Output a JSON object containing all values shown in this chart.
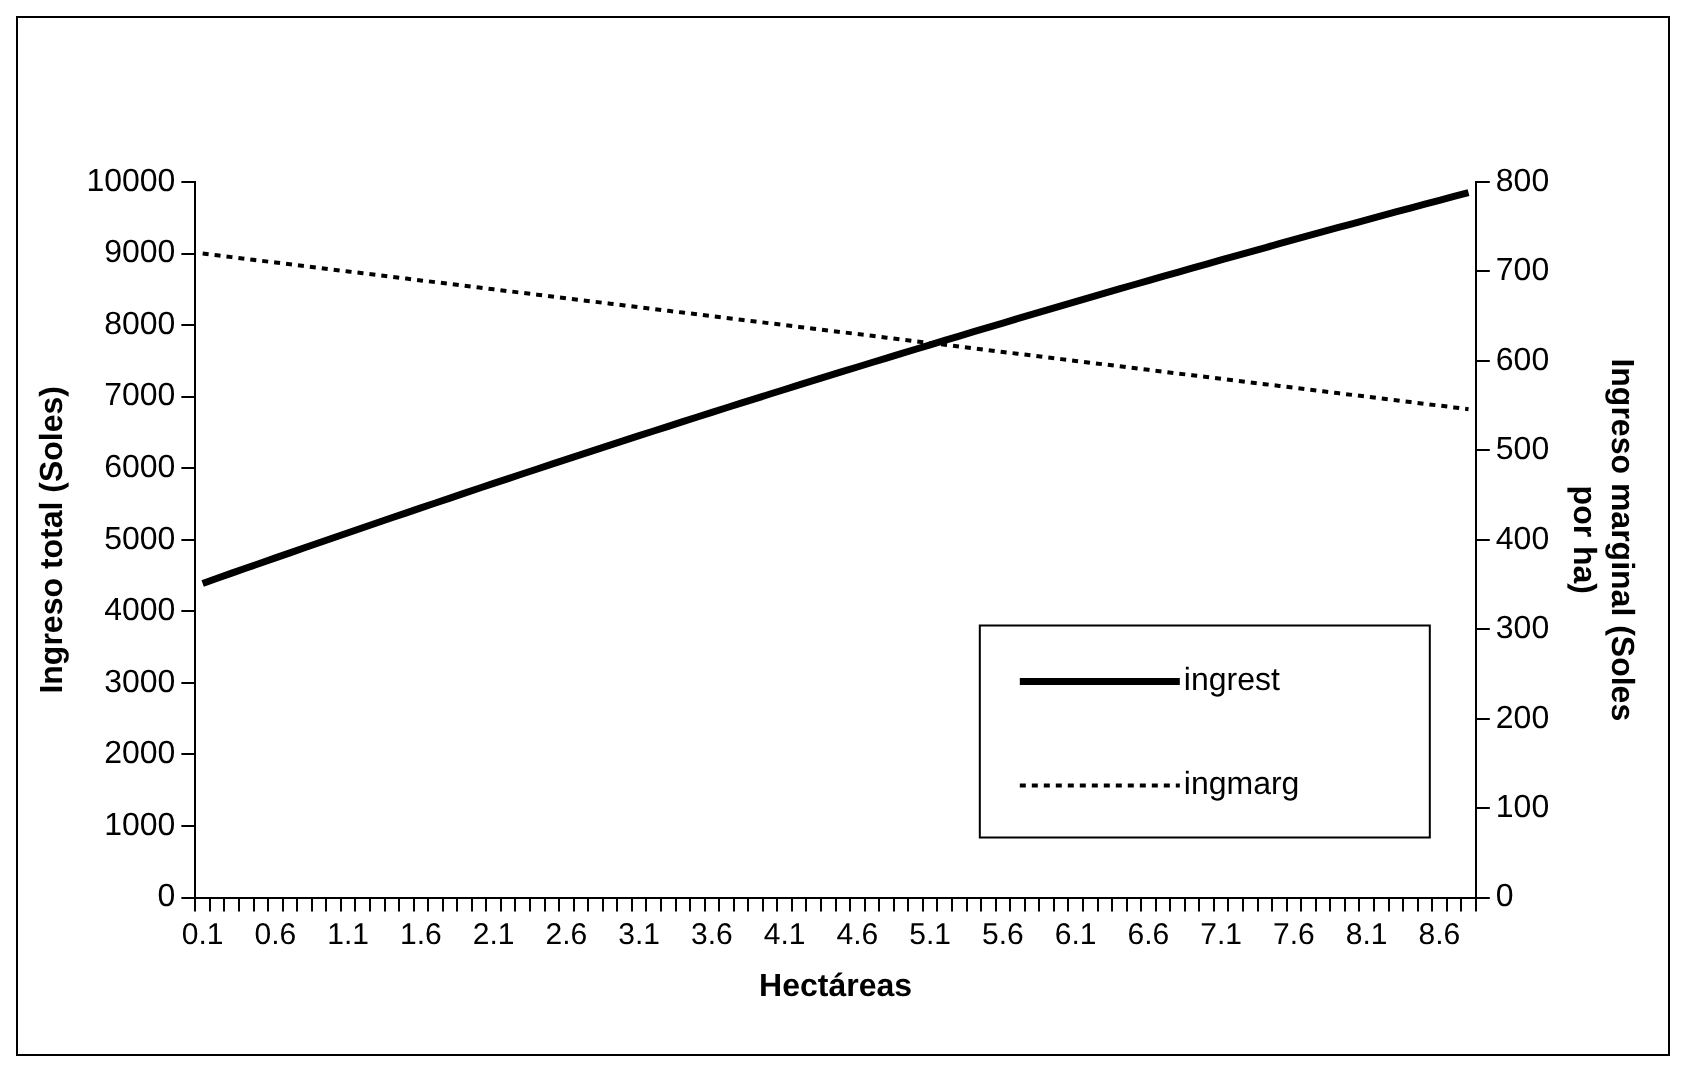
{
  "chart_data": {
    "type": "line",
    "xlabel": "Hectáreas",
    "ylabel": "Ingreso total (Soles)",
    "y2label": "Ingreso marginal (Soles por ha)",
    "categories": [
      "0.1",
      null,
      null,
      null,
      null,
      "0.6",
      null,
      null,
      null,
      null,
      "1.1",
      null,
      null,
      null,
      null,
      "1.6",
      null,
      null,
      null,
      null,
      "2.1",
      null,
      null,
      null,
      null,
      "2.6",
      null,
      null,
      null,
      null,
      "3.1",
      null,
      null,
      null,
      null,
      "3.6",
      null,
      null,
      null,
      null,
      "4.1",
      null,
      null,
      null,
      null,
      "4.6",
      null,
      null,
      null,
      null,
      "5.1",
      null,
      null,
      null,
      null,
      "5.6",
      null,
      null,
      null,
      null,
      "6.1",
      null,
      null,
      null,
      null,
      "6.6",
      null,
      null,
      null,
      null,
      "7.1",
      null,
      null,
      null,
      null,
      "7.6",
      null,
      null,
      null,
      null,
      "8.1",
      null,
      null,
      null,
      null,
      "8.6",
      null,
      null
    ],
    "series": [
      {
        "name": "ingrest",
        "color": "#000000",
        "line_style": "solid",
        "values": [
          4390,
          4462,
          4534,
          4605,
          4676,
          4747,
          4818,
          4889,
          4959,
          5029,
          5099,
          5169,
          5239,
          5308,
          5377,
          5446,
          5515,
          5583,
          5652,
          5720,
          5788,
          5855,
          5923,
          5990,
          6057,
          6124,
          6190,
          6257,
          6323,
          6389,
          6455,
          6520,
          6586,
          6651,
          6716,
          6780,
          6845,
          6909,
          6973,
          7037,
          7100,
          7164,
          7227,
          7290,
          7353,
          7415,
          7478,
          7540,
          7602,
          7663,
          7725,
          7786,
          7847,
          7908,
          7969,
          8029,
          8090,
          8150,
          8209,
          8269,
          8328,
          8388,
          8446,
          8505,
          8564,
          8622,
          8680,
          8738,
          8796,
          8853,
          8911,
          8968,
          9025,
          9081,
          9138,
          9194,
          9250,
          9305,
          9361,
          9416,
          9472,
          9526,
          9581,
          9636,
          9690,
          9744,
          9798,
          9852
        ]
      },
      {
        "name": "ingmarg",
        "color": "#000000",
        "line_style": "dotted",
        "axis": "y2",
        "values": [
          720,
          718,
          716,
          714,
          712,
          710,
          708,
          706,
          704,
          702,
          700,
          698,
          696,
          694,
          692,
          690,
          688,
          686,
          684,
          682,
          680,
          678,
          676,
          674,
          672,
          670,
          668,
          666,
          664,
          662,
          660,
          658,
          656,
          654,
          652,
          650,
          648,
          646,
          644,
          642,
          640,
          638,
          636,
          634,
          632,
          630,
          628,
          626,
          624,
          622,
          620,
          618,
          616,
          614,
          612,
          610,
          608,
          606,
          604,
          602,
          600,
          598,
          596,
          594,
          592,
          590,
          588,
          586,
          584,
          582,
          580,
          578,
          576,
          574,
          572,
          570,
          568,
          566,
          564,
          562,
          560,
          558,
          556,
          554,
          552,
          550,
          548,
          546
        ]
      }
    ],
    "ylim": [
      0,
      10000
    ],
    "yticks": [
      0,
      1000,
      2000,
      3000,
      4000,
      5000,
      6000,
      7000,
      8000,
      9000,
      10000
    ],
    "y2lim": [
      0,
      800
    ],
    "y2ticks": [
      0,
      100,
      200,
      300,
      400,
      500,
      600,
      700,
      800
    ],
    "grid": false,
    "legend": "bottom right",
    "marker": "none"
  }
}
